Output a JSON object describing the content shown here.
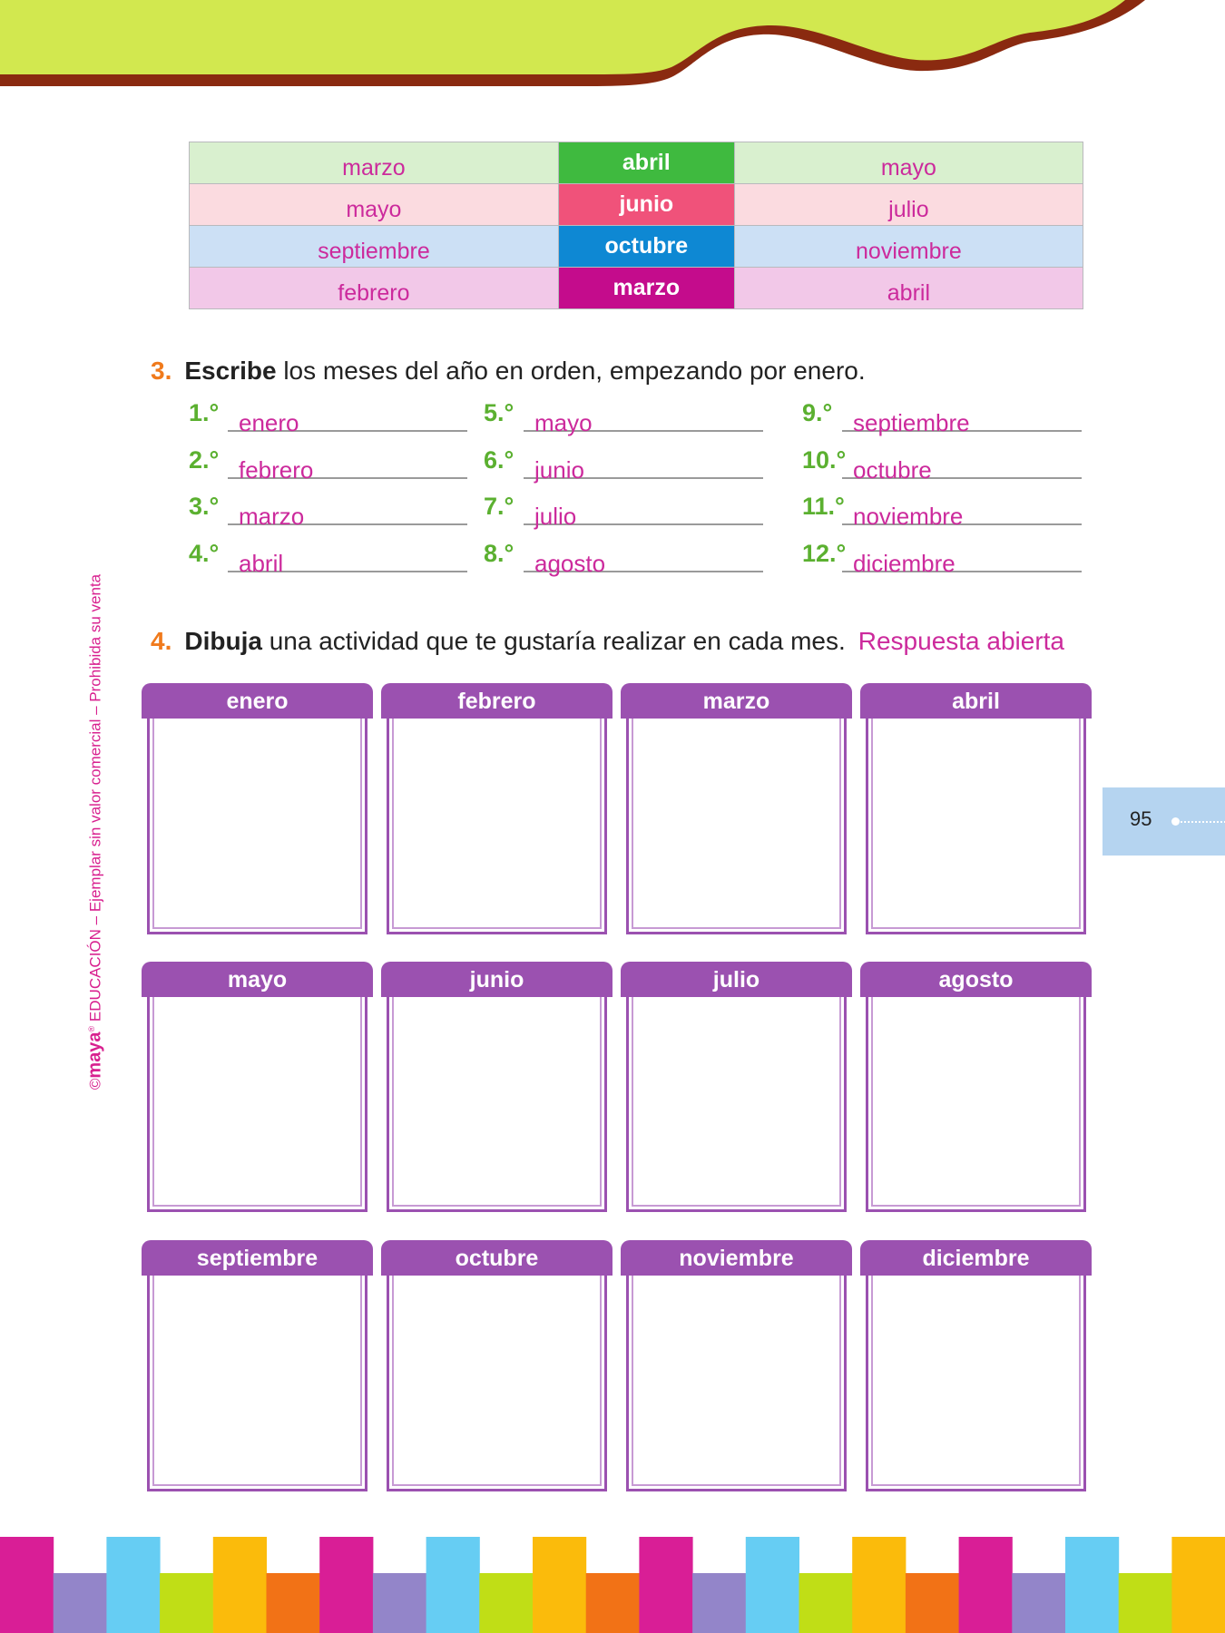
{
  "colors": {
    "header_green": "#d2e84f",
    "header_brown": "#8a2a10",
    "purple": "#9b51b0",
    "answer_pink": "#cc2a9c",
    "number_green": "#5bb030",
    "exercise_orange": "#f07a1c"
  },
  "table": {
    "rows": [
      {
        "left": "marzo",
        "center": "abril",
        "right": "mayo",
        "light": "#d9f0cf",
        "dark": "#3fba3f"
      },
      {
        "left": "mayo",
        "center": "junio",
        "right": "julio",
        "light": "#fbdbe0",
        "dark": "#f0527a"
      },
      {
        "left": "septiembre",
        "center": "octubre",
        "right": "noviembre",
        "light": "#cce0f5",
        "dark": "#0e88d3"
      },
      {
        "left": "febrero",
        "center": "marzo",
        "right": "abril",
        "light": "#f2c8e8",
        "dark": "#c40c8c"
      }
    ]
  },
  "exercise3": {
    "number": "3.",
    "verb": "Escribe",
    "text": "los meses del año en orden, empezando por enero.",
    "items": [
      {
        "ord": "1.°",
        "answer": "enero"
      },
      {
        "ord": "2.°",
        "answer": "febrero"
      },
      {
        "ord": "3.°",
        "answer": "marzo"
      },
      {
        "ord": "4.°",
        "answer": "abril"
      },
      {
        "ord": "5.°",
        "answer": "mayo"
      },
      {
        "ord": "6.°",
        "answer": "junio"
      },
      {
        "ord": "7.°",
        "answer": "julio"
      },
      {
        "ord": "8.°",
        "answer": "agosto"
      },
      {
        "ord": "9.°",
        "answer": "septiembre"
      },
      {
        "ord": "10.°",
        "answer": "octubre"
      },
      {
        "ord": "11.°",
        "answer": "noviembre"
      },
      {
        "ord": "12.°",
        "answer": "diciembre"
      }
    ]
  },
  "exercise4": {
    "number": "4.",
    "verb": "Dibuja",
    "text": "una actividad que te gustaría realizar en cada mes.",
    "answer_note": "Respuesta abierta",
    "months": [
      "enero",
      "febrero",
      "marzo",
      "abril",
      "mayo",
      "junio",
      "julio",
      "agosto",
      "septiembre",
      "octubre",
      "noviembre",
      "diciembre"
    ]
  },
  "page_number": "95",
  "side_text": {
    "copyright": "©",
    "logo": "maya",
    "reg": "®",
    "text": " EDUCACIÓN – Ejemplar sin valor comercial – Prohibida su venta"
  },
  "footer_stripes": {
    "colors": [
      "#d91e96",
      "#9385c9",
      "#66cdf3",
      "#c0de16",
      "#fbbb0b",
      "#f27216"
    ]
  }
}
